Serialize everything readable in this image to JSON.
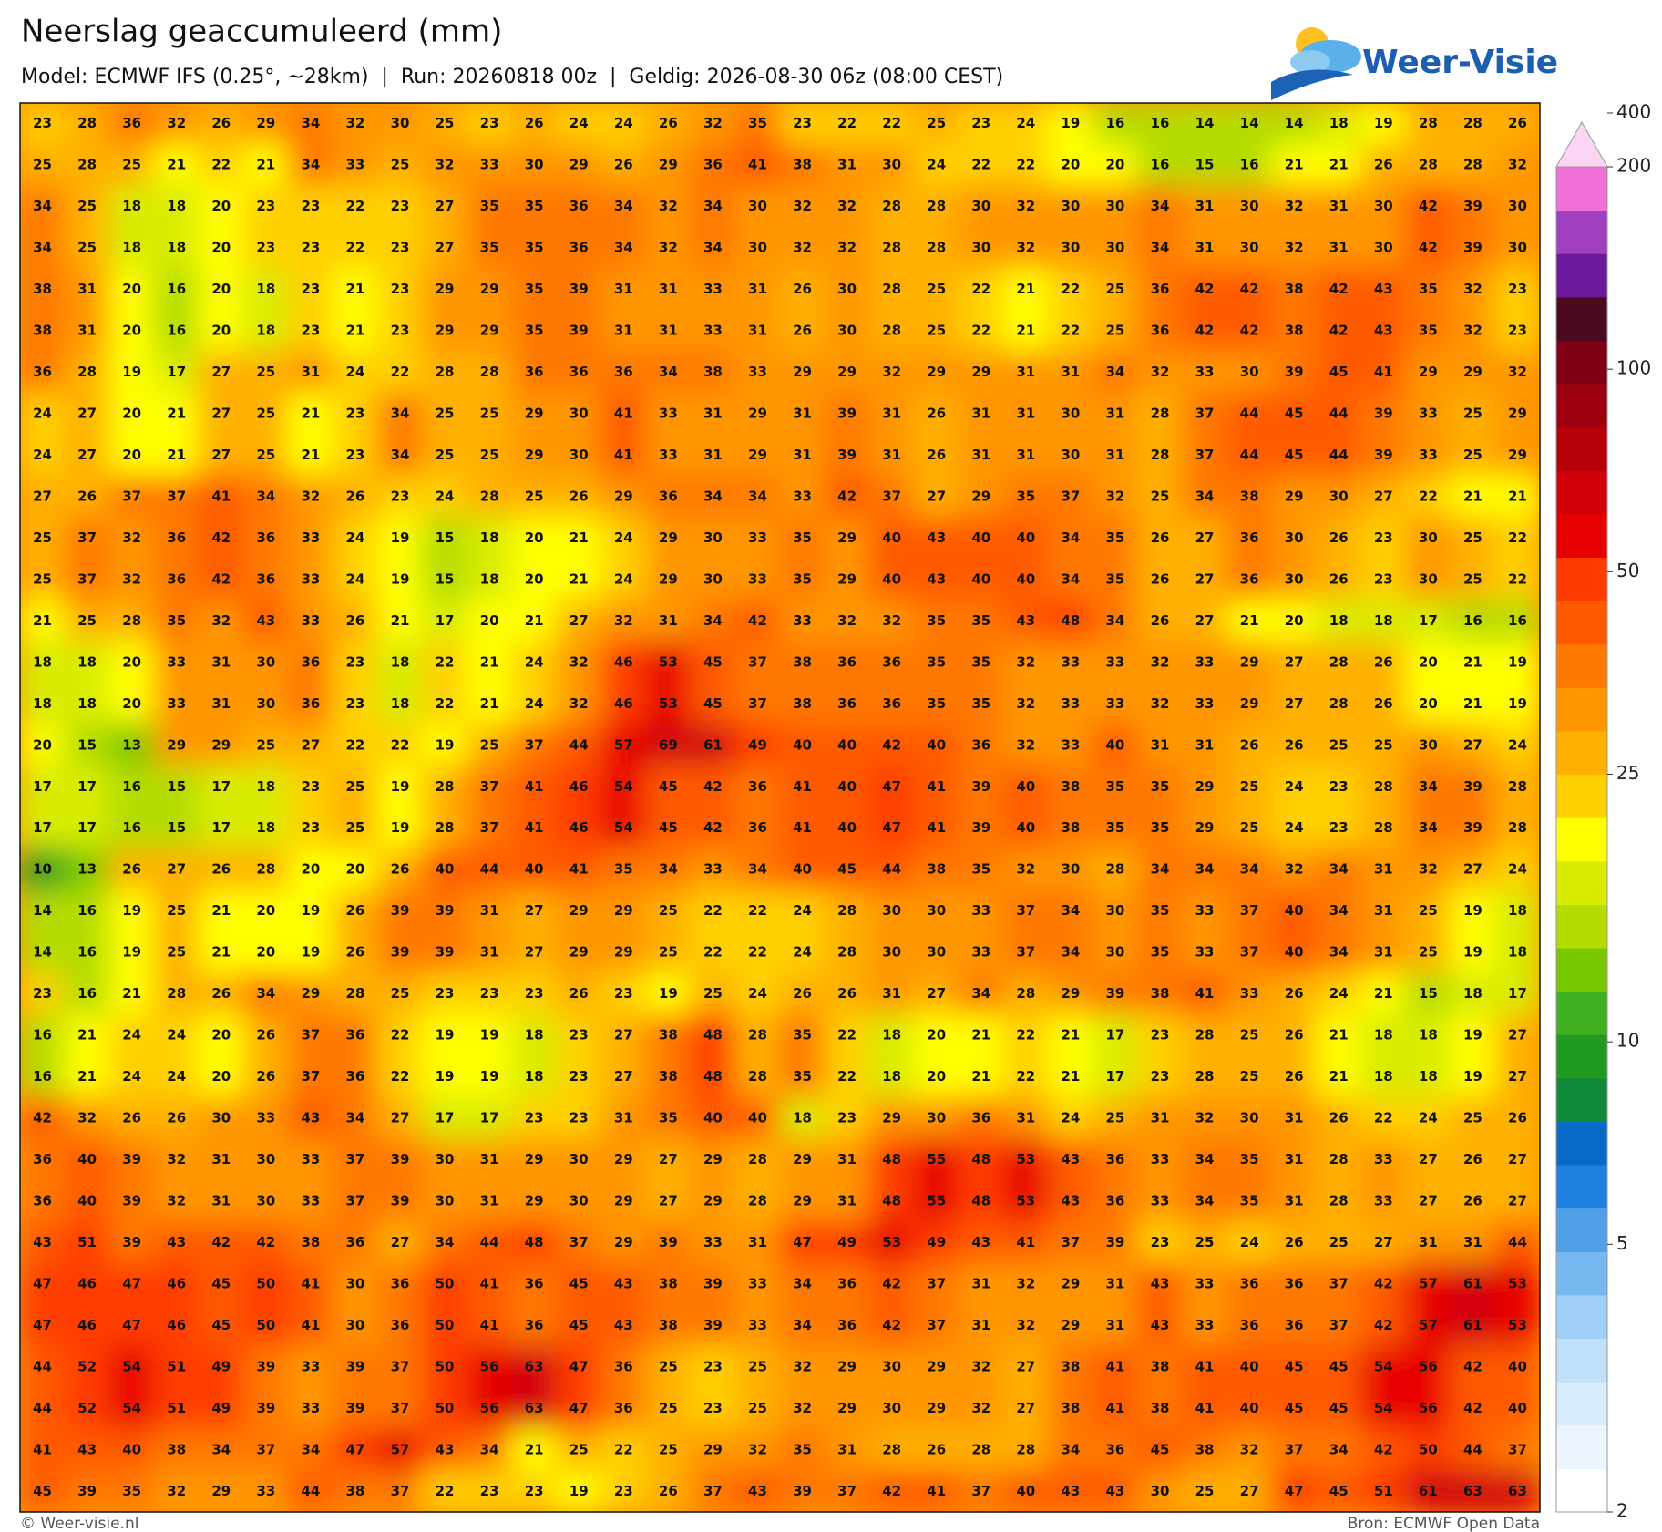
{
  "header": {
    "title": "Neerslag geaccumuleerd (mm)",
    "subtitle": "Model: ECMWF IFS (0.25°, ~28km)  |  Run: 20260818 00z  |  Geldig: 2026-08-30 06z (08:00 CEST)"
  },
  "logo": "Weer-Visie",
  "grid": {
    "rows": [
      [
        23,
        28,
        36,
        32,
        26,
        29,
        34,
        32,
        30,
        25,
        23,
        26,
        24,
        24,
        26,
        32,
        35,
        23,
        22,
        22,
        25,
        23,
        24,
        19,
        16,
        16,
        14,
        14,
        14,
        18,
        19,
        28,
        28,
        26
      ],
      [
        25,
        28,
        25,
        21,
        22,
        21,
        34,
        33,
        25,
        32,
        33,
        30,
        29,
        26,
        29,
        36,
        41,
        38,
        31,
        30,
        24,
        22,
        22,
        20,
        20,
        16,
        15,
        16,
        21,
        21,
        26,
        28,
        28,
        32
      ],
      [
        34,
        25,
        18,
        18,
        20,
        23,
        23,
        22,
        23,
        27,
        35,
        35,
        36,
        34,
        32,
        34,
        30,
        32,
        32,
        28,
        28,
        30,
        32,
        30,
        30,
        34,
        31,
        30,
        32,
        31,
        30,
        42,
        39,
        30
      ],
      [
        34,
        25,
        18,
        18,
        20,
        23,
        23,
        22,
        23,
        27,
        35,
        35,
        36,
        34,
        32,
        34,
        30,
        32,
        32,
        28,
        28,
        30,
        32,
        30,
        30,
        34,
        31,
        30,
        32,
        31,
        30,
        42,
        39,
        30
      ],
      [
        38,
        31,
        20,
        16,
        20,
        18,
        23,
        21,
        23,
        29,
        29,
        35,
        39,
        31,
        31,
        33,
        31,
        26,
        30,
        28,
        25,
        22,
        21,
        22,
        25,
        36,
        42,
        42,
        38,
        42,
        43,
        35,
        32,
        23
      ],
      [
        38,
        31,
        20,
        16,
        20,
        18,
        23,
        21,
        23,
        29,
        29,
        35,
        39,
        31,
        31,
        33,
        31,
        26,
        30,
        28,
        25,
        22,
        21,
        22,
        25,
        36,
        42,
        42,
        38,
        42,
        43,
        35,
        32,
        23
      ],
      [
        36,
        28,
        19,
        17,
        27,
        25,
        31,
        24,
        22,
        28,
        28,
        36,
        36,
        36,
        34,
        38,
        33,
        29,
        29,
        32,
        29,
        29,
        31,
        31,
        34,
        32,
        33,
        30,
        39,
        45,
        41,
        29,
        29,
        32
      ],
      [
        24,
        27,
        20,
        21,
        27,
        25,
        21,
        23,
        34,
        25,
        25,
        29,
        30,
        41,
        33,
        31,
        29,
        31,
        39,
        31,
        26,
        31,
        31,
        30,
        31,
        28,
        37,
        44,
        45,
        44,
        39,
        33,
        25,
        29
      ],
      [
        24,
        27,
        20,
        21,
        27,
        25,
        21,
        23,
        34,
        25,
        25,
        29,
        30,
        41,
        33,
        31,
        29,
        31,
        39,
        31,
        26,
        31,
        31,
        30,
        31,
        28,
        37,
        44,
        45,
        44,
        39,
        33,
        25,
        29
      ],
      [
        27,
        26,
        37,
        37,
        41,
        34,
        32,
        26,
        23,
        24,
        28,
        25,
        26,
        29,
        36,
        34,
        34,
        33,
        42,
        37,
        27,
        29,
        35,
        37,
        32,
        25,
        34,
        38,
        29,
        30,
        27,
        22,
        21,
        21
      ],
      [
        25,
        37,
        32,
        36,
        42,
        36,
        33,
        24,
        19,
        15,
        18,
        20,
        21,
        24,
        29,
        30,
        33,
        35,
        29,
        40,
        43,
        40,
        40,
        34,
        35,
        26,
        27,
        36,
        30,
        26,
        23,
        30,
        25,
        22
      ],
      [
        25,
        37,
        32,
        36,
        42,
        36,
        33,
        24,
        19,
        15,
        18,
        20,
        21,
        24,
        29,
        30,
        33,
        35,
        29,
        40,
        43,
        40,
        40,
        34,
        35,
        26,
        27,
        36,
        30,
        26,
        23,
        30,
        25,
        22
      ],
      [
        21,
        25,
        28,
        35,
        32,
        43,
        33,
        26,
        21,
        17,
        20,
        21,
        27,
        32,
        31,
        34,
        42,
        33,
        32,
        32,
        35,
        35,
        43,
        48,
        34,
        26,
        27,
        21,
        20,
        18,
        18,
        17,
        16,
        16
      ],
      [
        18,
        18,
        20,
        33,
        31,
        30,
        36,
        23,
        18,
        22,
        21,
        24,
        32,
        46,
        53,
        45,
        37,
        38,
        36,
        36,
        35,
        35,
        32,
        33,
        33,
        32,
        33,
        29,
        27,
        28,
        26,
        20,
        21,
        19
      ],
      [
        18,
        18,
        20,
        33,
        31,
        30,
        36,
        23,
        18,
        22,
        21,
        24,
        32,
        46,
        53,
        45,
        37,
        38,
        36,
        36,
        35,
        35,
        32,
        33,
        33,
        32,
        33,
        29,
        27,
        28,
        26,
        20,
        21,
        19
      ],
      [
        20,
        15,
        13,
        29,
        29,
        25,
        27,
        22,
        22,
        19,
        25,
        37,
        44,
        57,
        69,
        61,
        49,
        40,
        40,
        42,
        40,
        36,
        32,
        33,
        40,
        31,
        31,
        26,
        26,
        25,
        25,
        30,
        27,
        24
      ],
      [
        17,
        17,
        16,
        15,
        17,
        18,
        23,
        25,
        19,
        28,
        37,
        41,
        46,
        54,
        45,
        42,
        36,
        41,
        40,
        47,
        41,
        39,
        40,
        38,
        35,
        35,
        29,
        25,
        24,
        23,
        28,
        34,
        39,
        28
      ],
      [
        17,
        17,
        16,
        15,
        17,
        18,
        23,
        25,
        19,
        28,
        37,
        41,
        46,
        54,
        45,
        42,
        36,
        41,
        40,
        47,
        41,
        39,
        40,
        38,
        35,
        35,
        29,
        25,
        24,
        23,
        28,
        34,
        39,
        28
      ],
      [
        10,
        13,
        26,
        27,
        26,
        28,
        20,
        20,
        26,
        40,
        44,
        40,
        41,
        35,
        34,
        33,
        34,
        40,
        45,
        44,
        38,
        35,
        32,
        30,
        28,
        34,
        34,
        34,
        32,
        34,
        31,
        32,
        27,
        24
      ],
      [
        14,
        16,
        19,
        25,
        21,
        20,
        19,
        26,
        39,
        39,
        31,
        27,
        29,
        29,
        25,
        22,
        22,
        24,
        28,
        30,
        30,
        33,
        37,
        34,
        30,
        35,
        33,
        37,
        40,
        34,
        31,
        25,
        19,
        18
      ],
      [
        14,
        16,
        19,
        25,
        21,
        20,
        19,
        26,
        39,
        39,
        31,
        27,
        29,
        29,
        25,
        22,
        22,
        24,
        28,
        30,
        30,
        33,
        37,
        34,
        30,
        35,
        33,
        37,
        40,
        34,
        31,
        25,
        19,
        18
      ],
      [
        23,
        16,
        21,
        28,
        26,
        34,
        29,
        28,
        25,
        23,
        23,
        23,
        26,
        23,
        19,
        25,
        24,
        26,
        26,
        31,
        27,
        34,
        28,
        29,
        39,
        38,
        41,
        33,
        26,
        24,
        21,
        15,
        18,
        17
      ],
      [
        16,
        21,
        24,
        24,
        20,
        26,
        37,
        36,
        22,
        19,
        19,
        18,
        23,
        27,
        38,
        48,
        28,
        35,
        22,
        18,
        20,
        21,
        22,
        21,
        17,
        23,
        28,
        25,
        26,
        21,
        18,
        18,
        19,
        27
      ],
      [
        16,
        21,
        24,
        24,
        20,
        26,
        37,
        36,
        22,
        19,
        19,
        18,
        23,
        27,
        38,
        48,
        28,
        35,
        22,
        18,
        20,
        21,
        22,
        21,
        17,
        23,
        28,
        25,
        26,
        21,
        18,
        18,
        19,
        27
      ],
      [
        42,
        32,
        26,
        26,
        30,
        33,
        43,
        34,
        27,
        17,
        17,
        23,
        23,
        31,
        35,
        40,
        40,
        18,
        23,
        29,
        30,
        36,
        31,
        24,
        25,
        31,
        32,
        30,
        31,
        26,
        22,
        24,
        25,
        26
      ],
      [
        36,
        40,
        39,
        32,
        31,
        30,
        33,
        37,
        39,
        30,
        31,
        29,
        30,
        29,
        27,
        29,
        28,
        29,
        31,
        48,
        55,
        48,
        53,
        43,
        36,
        33,
        34,
        35,
        31,
        28,
        33,
        27,
        26,
        27
      ],
      [
        36,
        40,
        39,
        32,
        31,
        30,
        33,
        37,
        39,
        30,
        31,
        29,
        30,
        29,
        27,
        29,
        28,
        29,
        31,
        48,
        55,
        48,
        53,
        43,
        36,
        33,
        34,
        35,
        31,
        28,
        33,
        27,
        26,
        27
      ],
      [
        43,
        51,
        39,
        43,
        42,
        42,
        38,
        36,
        27,
        34,
        44,
        48,
        37,
        29,
        39,
        33,
        31,
        47,
        49,
        53,
        49,
        43,
        41,
        37,
        39,
        23,
        25,
        24,
        26,
        25,
        27,
        31,
        31,
        44
      ],
      [
        47,
        46,
        47,
        46,
        45,
        50,
        41,
        30,
        36,
        50,
        41,
        36,
        45,
        43,
        38,
        39,
        33,
        34,
        36,
        42,
        37,
        31,
        32,
        29,
        31,
        43,
        33,
        36,
        36,
        37,
        42,
        57,
        61,
        53
      ],
      [
        47,
        46,
        47,
        46,
        45,
        50,
        41,
        30,
        36,
        50,
        41,
        36,
        45,
        43,
        38,
        39,
        33,
        34,
        36,
        42,
        37,
        31,
        32,
        29,
        31,
        43,
        33,
        36,
        36,
        37,
        42,
        57,
        61,
        53
      ],
      [
        44,
        52,
        54,
        51,
        49,
        39,
        33,
        39,
        37,
        50,
        56,
        63,
        47,
        36,
        25,
        23,
        25,
        32,
        29,
        30,
        29,
        32,
        27,
        38,
        41,
        38,
        41,
        40,
        45,
        45,
        54,
        56,
        42,
        40
      ],
      [
        44,
        52,
        54,
        51,
        49,
        39,
        33,
        39,
        37,
        50,
        56,
        63,
        47,
        36,
        25,
        23,
        25,
        32,
        29,
        30,
        29,
        32,
        27,
        38,
        41,
        38,
        41,
        40,
        45,
        45,
        54,
        56,
        42,
        40
      ],
      [
        41,
        43,
        40,
        38,
        34,
        37,
        34,
        47,
        57,
        43,
        34,
        21,
        25,
        22,
        25,
        29,
        32,
        35,
        31,
        28,
        26,
        28,
        28,
        34,
        36,
        45,
        38,
        32,
        37,
        34,
        42,
        50,
        44,
        37
      ],
      [
        45,
        39,
        35,
        32,
        29,
        33,
        44,
        38,
        37,
        22,
        23,
        23,
        19,
        23,
        26,
        37,
        43,
        39,
        37,
        42,
        41,
        37,
        40,
        43,
        43,
        30,
        25,
        27,
        47,
        45,
        51,
        61,
        63,
        63
      ]
    ]
  },
  "colorbar": {
    "ticks": [
      2,
      5,
      10,
      25,
      50,
      100,
      200,
      400
    ],
    "colors": [
      "#ffffff",
      "#ecf5fd",
      "#d8ecfc",
      "#c0e0fa",
      "#a0d0f8",
      "#78b8f0",
      "#50a0e8",
      "#2080e0",
      "#0a6ac8",
      "#108a3a",
      "#209a20",
      "#40b020",
      "#78c800",
      "#b4dc00",
      "#d8ec00",
      "#ffff00",
      "#ffd000",
      "#ffb000",
      "#ff9600",
      "#ff7800",
      "#ff5a00",
      "#ff3c00",
      "#e80000",
      "#d20008",
      "#b80008",
      "#9e0010",
      "#800014",
      "#4b0a1e",
      "#6a1a9a",
      "#a040c0",
      "#f070d8"
    ],
    "extend_color": "#fcd4f4"
  },
  "footer": {
    "credit": "© Weer-visie.nl",
    "source": "Bron: ECMWF Open Data"
  }
}
